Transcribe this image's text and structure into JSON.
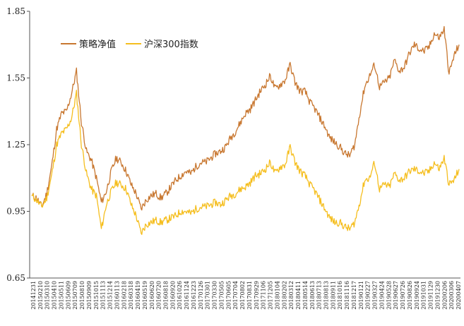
{
  "chart_data": {
    "type": "line",
    "ylim": [
      0.65,
      1.85
    ],
    "y_ticks": [
      "0.65",
      "0.95",
      "1.25",
      "1.55",
      "1.85"
    ],
    "grid": false,
    "legend_position": "top-left",
    "x_tick_labels": [
      "20141231",
      "20150210",
      "20150310",
      "20150410",
      "20150511",
      "20150609",
      "20150709",
      "20150810",
      "20150909",
      "20151015",
      "20151113",
      "20151214",
      "20160113",
      "20160218",
      "20160318",
      "20160419",
      "20160519",
      "20160620",
      "20160720",
      "20160818",
      "20160920",
      "20161026",
      "20161124",
      "20161223",
      "20170126",
      "20170301",
      "20170330",
      "20170505",
      "20170605",
      "20170704",
      "20170802",
      "20170831",
      "20170929",
      "20171106",
      "20171205",
      "20180104",
      "20180202",
      "20180312",
      "20180411",
      "20180514",
      "20180613",
      "20180713",
      "20180813",
      "20180911",
      "20181016",
      "20181116",
      "20181217",
      "20190121",
      "20190227",
      "20190327",
      "20190424",
      "20190528",
      "20190627",
      "20190726",
      "20190826",
      "20190924",
      "20191031",
      "20191129",
      "20191230",
      "20200206",
      "20200306",
      "20200407"
    ],
    "series": [
      {
        "name": "策略净值",
        "color": "#C87730",
        "values": [
          1.02,
          1.01,
          0.97,
          1.03,
          1.15,
          1.32,
          1.39,
          1.4,
          1.48,
          1.58,
          1.35,
          1.22,
          1.18,
          1.1,
          0.99,
          1.04,
          1.13,
          1.19,
          1.17,
          1.13,
          1.07,
          1.03,
          0.96,
          1.0,
          1.02,
          1.03,
          1.01,
          1.03,
          1.06,
          1.09,
          1.11,
          1.13,
          1.12,
          1.15,
          1.17,
          1.17,
          1.19,
          1.21,
          1.22,
          1.24,
          1.28,
          1.31,
          1.35,
          1.39,
          1.41,
          1.45,
          1.49,
          1.52,
          1.56,
          1.5,
          1.52,
          1.54,
          1.61,
          1.53,
          1.49,
          1.49,
          1.44,
          1.41,
          1.37,
          1.33,
          1.28,
          1.26,
          1.24,
          1.21,
          1.2,
          1.25,
          1.39,
          1.51,
          1.56,
          1.61,
          1.51,
          1.53,
          1.55,
          1.63,
          1.58,
          1.6,
          1.66,
          1.7,
          1.68,
          1.67,
          1.69,
          1.75,
          1.73,
          1.77,
          1.57,
          1.65,
          1.7
        ]
      },
      {
        "name": "沪深300指数",
        "color": "#F5BE1E",
        "values": [
          1.02,
          1.0,
          0.97,
          1.01,
          1.11,
          1.25,
          1.3,
          1.32,
          1.37,
          1.48,
          1.25,
          1.12,
          1.05,
          1.02,
          0.87,
          0.98,
          1.04,
          1.08,
          1.07,
          1.05,
          0.98,
          0.93,
          0.85,
          0.89,
          0.9,
          0.91,
          0.9,
          0.91,
          0.92,
          0.93,
          0.95,
          0.95,
          0.94,
          0.96,
          0.97,
          0.97,
          0.98,
          0.99,
          0.98,
          1.0,
          1.02,
          1.03,
          1.05,
          1.06,
          1.08,
          1.11,
          1.12,
          1.14,
          1.17,
          1.12,
          1.15,
          1.16,
          1.24,
          1.17,
          1.13,
          1.11,
          1.07,
          1.04,
          1.0,
          0.96,
          0.92,
          0.9,
          0.9,
          0.88,
          0.87,
          0.9,
          0.99,
          1.09,
          1.1,
          1.17,
          1.05,
          1.07,
          1.06,
          1.12,
          1.09,
          1.1,
          1.13,
          1.14,
          1.13,
          1.12,
          1.13,
          1.17,
          1.14,
          1.19,
          1.07,
          1.09,
          1.14
        ]
      }
    ]
  }
}
